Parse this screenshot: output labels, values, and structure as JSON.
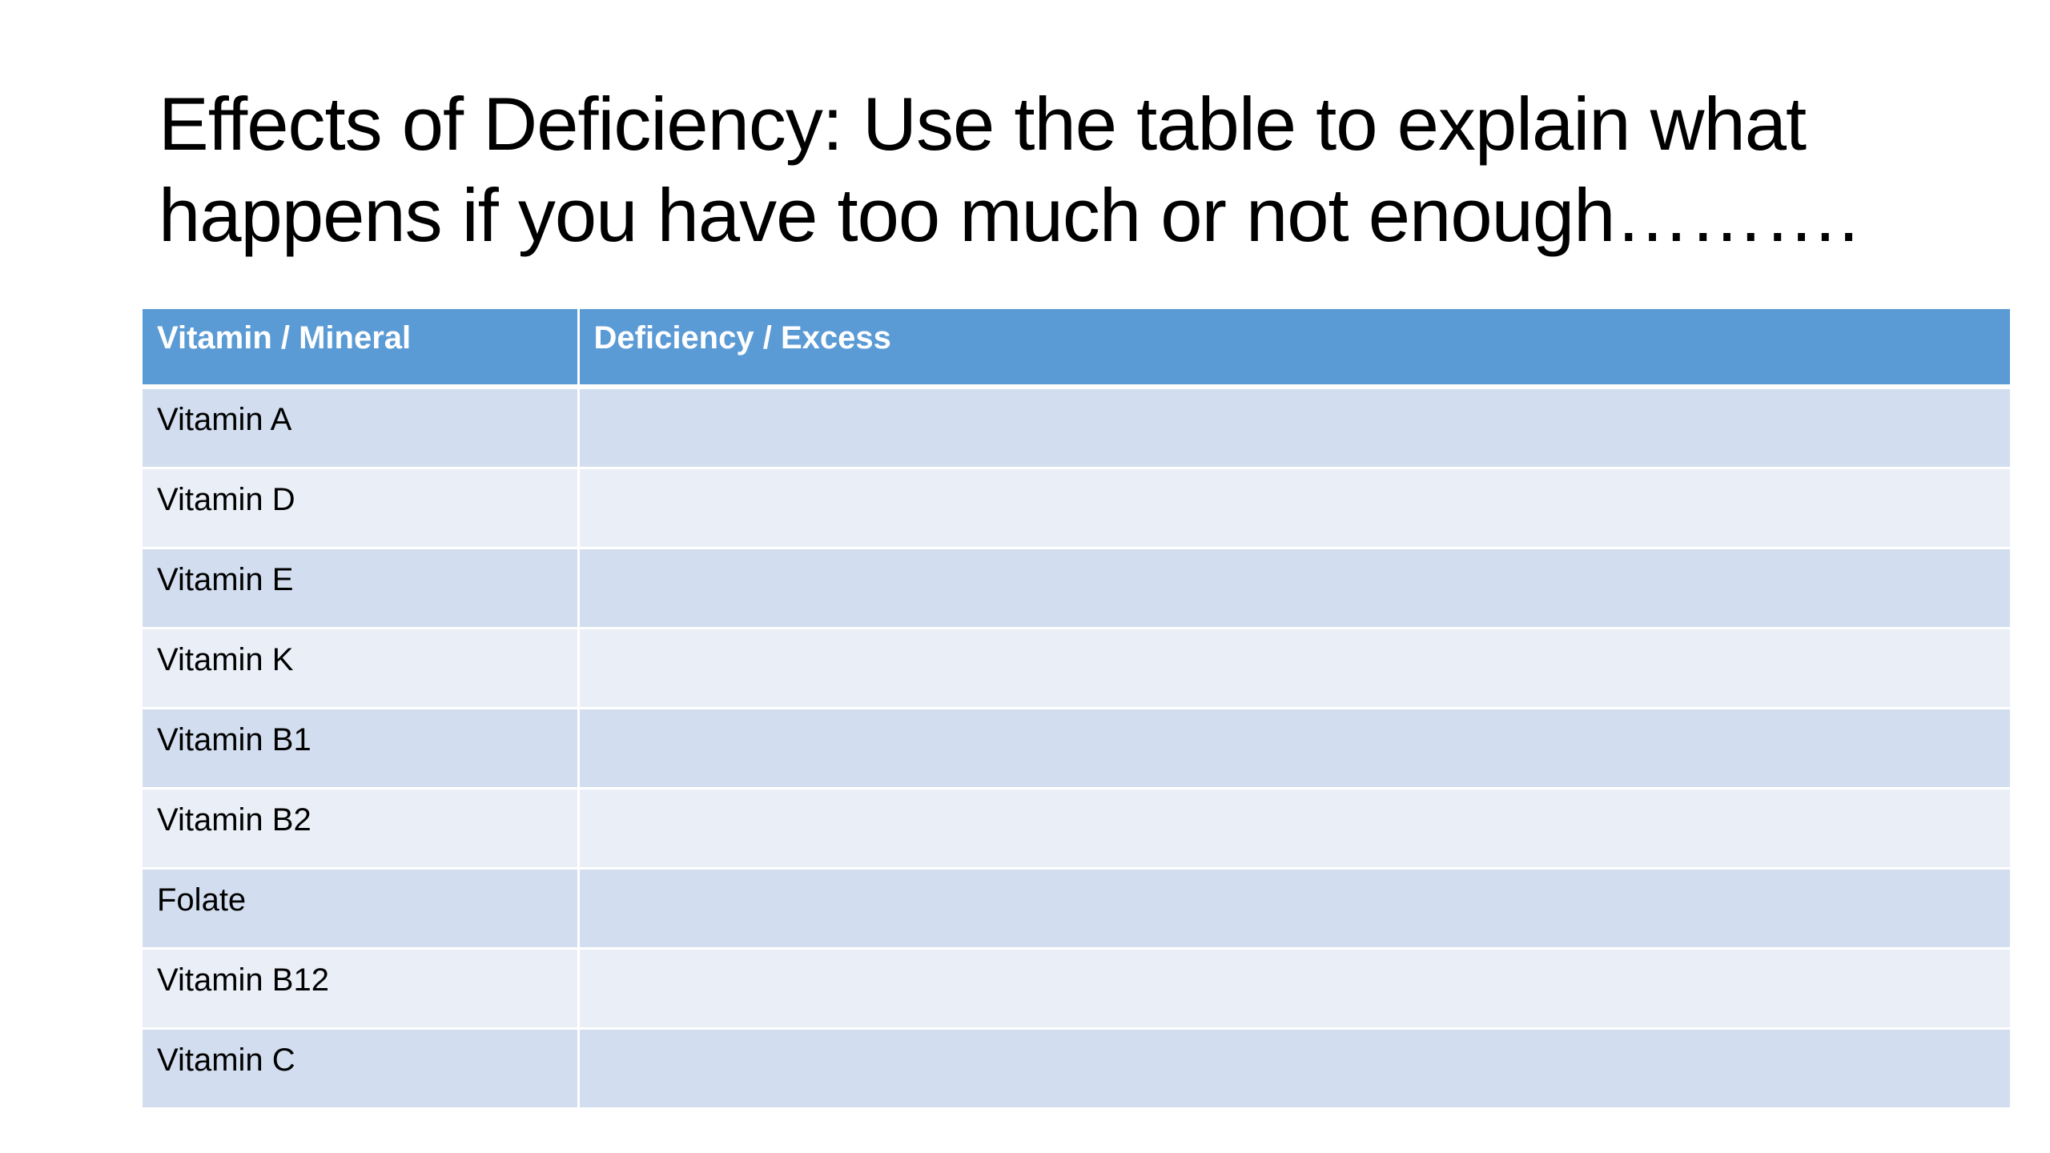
{
  "slide": {
    "title_line1": "Effects of Deficiency: Use the table to explain what",
    "title_line2": "happens if you have too much or not enough……….",
    "table": {
      "headers": [
        "Vitamin / Mineral",
        "Deficiency / Excess"
      ],
      "rows": [
        [
          "Vitamin A",
          ""
        ],
        [
          "Vitamin D",
          ""
        ],
        [
          "Vitamin E",
          ""
        ],
        [
          "Vitamin K",
          ""
        ],
        [
          "Vitamin B1",
          ""
        ],
        [
          "Vitamin B2",
          ""
        ],
        [
          "Folate",
          ""
        ],
        [
          "Vitamin B12",
          ""
        ],
        [
          "Vitamin C",
          ""
        ]
      ]
    }
  },
  "colors": {
    "header_bg": "#5b9bd5",
    "row_band_dark": "#d2deef",
    "row_band_light": "#eaeff7"
  }
}
